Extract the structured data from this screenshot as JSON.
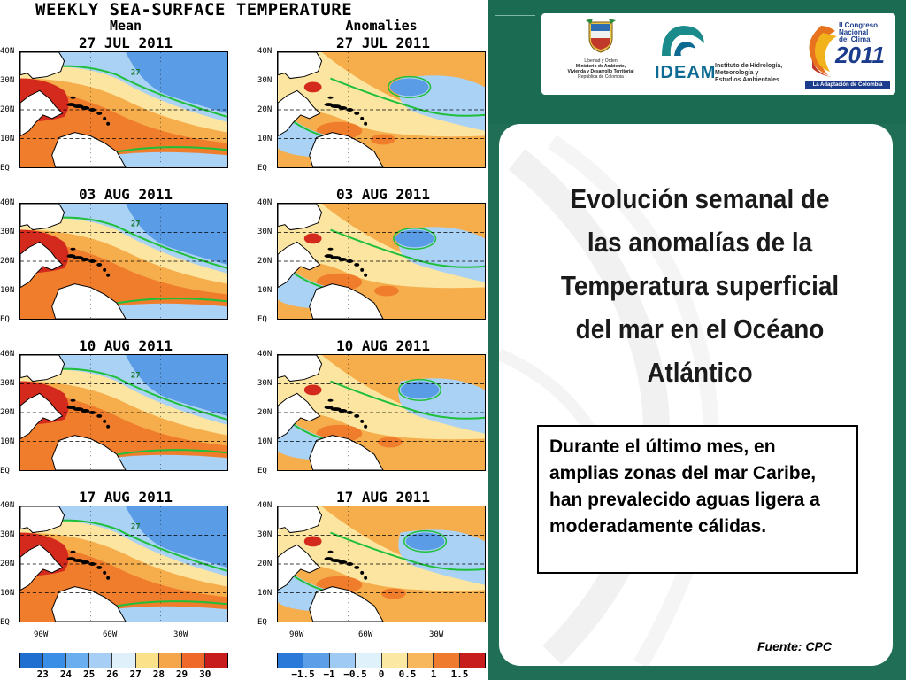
{
  "figure": {
    "title": "WEEKLY SEA-SURFACE TEMPERATURE",
    "mean_header": "Mean",
    "anomalies_header": "Anomalies",
    "dates": [
      "27 JUL 2011",
      "03 AUG 2011",
      "10 AUG 2011",
      "17 AUG 2011"
    ],
    "lat_ticks": [
      "40N",
      "30N",
      "20N",
      "10N",
      "EQ"
    ],
    "lon_ticks": [
      "90W",
      "60W",
      "30W"
    ],
    "contour_label": "27",
    "mean_colorbar": {
      "labels": [
        "23",
        "24",
        "25",
        "26",
        "27",
        "28",
        "29",
        "30"
      ],
      "colors": [
        "#1f6fd1",
        "#3b8ee6",
        "#6aaeef",
        "#a7cff5",
        "#dff0fb",
        "#fbe28a",
        "#f6a64a",
        "#ef6a2a",
        "#c81d1d"
      ]
    },
    "anomaly_colorbar": {
      "labels": [
        "−1.5",
        "−1",
        "−0.5",
        "0",
        "0.5",
        "1",
        "1.5"
      ],
      "colors": [
        "#2a78d8",
        "#5c9fe8",
        "#9ecaf4",
        "#dff1fb",
        "#fbe8a3",
        "#f7b75c",
        "#ef7b2e",
        "#c81d1d"
      ]
    },
    "palette": {
      "hot": "#d42a1e",
      "warm": "#ef7d2b",
      "mild": "#f6ad4c",
      "pale": "#fbe5a0",
      "cool": "#a9d2f4",
      "cold": "#5a9de6",
      "land": "#ffffff",
      "contour": "#1fbf3a"
    }
  },
  "slide": {
    "colors": {
      "background": "#1f6e55",
      "card": "#ffffff"
    },
    "logos": {
      "colombia_lines": [
        "Libertad y Orden",
        "Ministerio de Ambiente,",
        "Vivienda y Desarrollo Territorial",
        "República de Colombia"
      ],
      "ideam_word": "IDEAM",
      "ideam_lines": [
        "Instituto de Hidrología,",
        "Meteorología y",
        "Estudios Ambientales"
      ],
      "congreso_lines": [
        "II Congreso",
        "Nacional",
        "del Clima"
      ],
      "congreso_year": "2011",
      "congreso_tagline": "La Adaptación de Colombia"
    },
    "headline": "Evolución semanal de las anomalías de la Temperatura superficial del mar en el Océano Atlántico",
    "summary": "Durante el último mes, en amplias zonas del mar Caribe, han prevalecido aguas ligera a moderadamente cálidas.",
    "source": "Fuente: CPC"
  }
}
